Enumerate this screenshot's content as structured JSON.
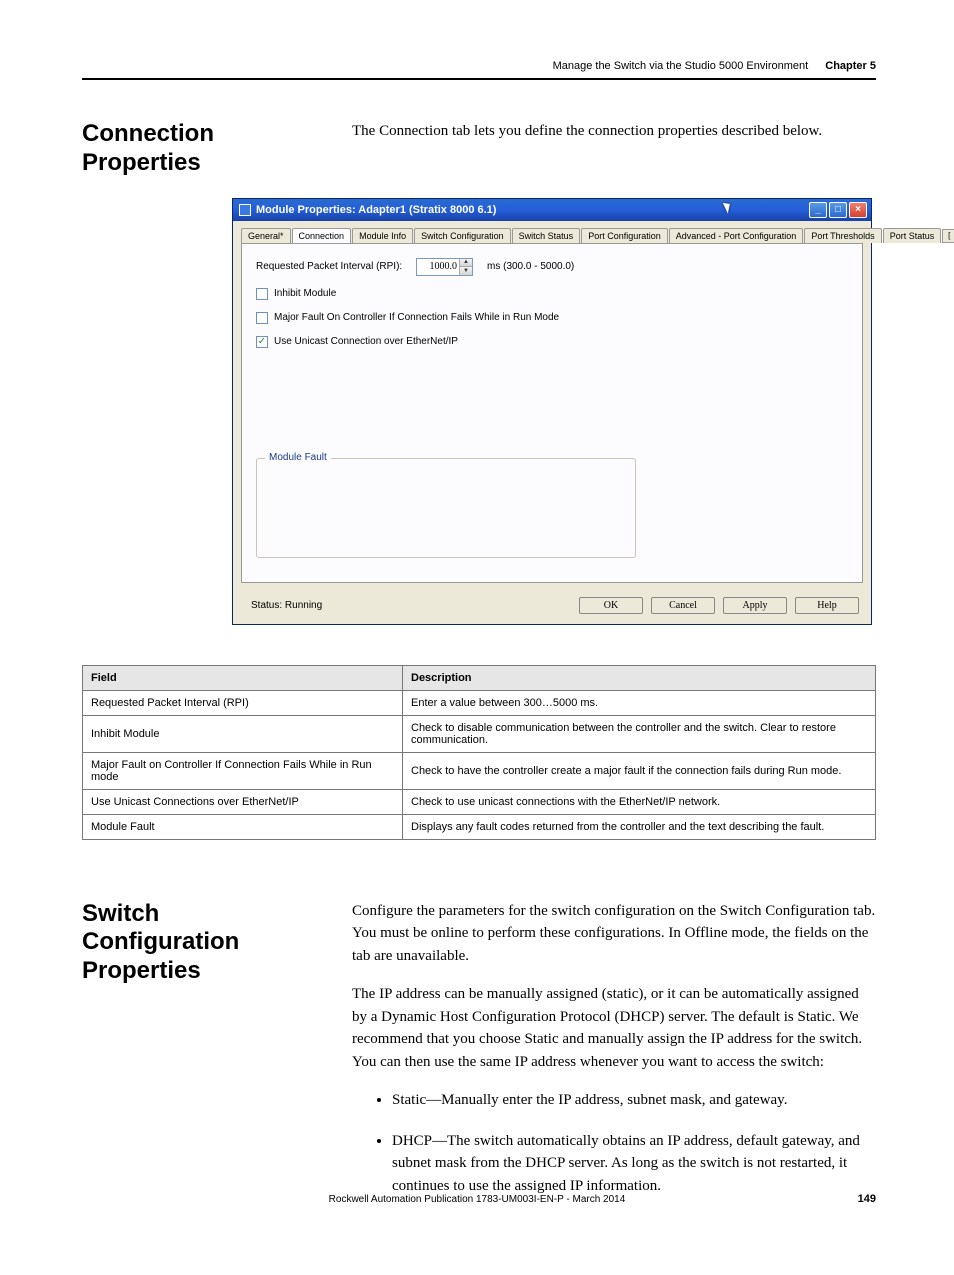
{
  "header": {
    "breadcrumb": "Manage the Switch via the Studio 5000 Environment",
    "chapter": "Chapter 5"
  },
  "section1": {
    "heading": "Connection Properties",
    "intro": "The Connection tab lets you define the connection properties described below."
  },
  "dialog": {
    "title": "Module Properties: Adapter1 (Stratix 8000 6.1)",
    "tabs": {
      "general": "General*",
      "connection": "Connection",
      "module_info": "Module Info",
      "switch_config": "Switch Configuration",
      "switch_status": "Switch Status",
      "port_config": "Port Configuration",
      "adv_port_config": "Advanced - Port Configuration",
      "port_thresholds": "Port Thresholds",
      "port_status": "Port Status"
    },
    "rpi_label": "Requested Packet Interval (RPI):",
    "rpi_value": "1000.0",
    "rpi_range": "ms (300.0 - 5000.0)",
    "inhibit_label": "Inhibit Module",
    "major_fault_label": "Major Fault On Controller If Connection Fails While in Run Mode",
    "unicast_label": "Use Unicast Connection over EtherNet/IP",
    "module_fault_legend": "Module Fault",
    "status_label": "Status: Running",
    "buttons": {
      "ok": "OK",
      "cancel": "Cancel",
      "apply": "Apply",
      "help": "Help"
    }
  },
  "table": {
    "headers": {
      "field": "Field",
      "description": "Description"
    },
    "rows": [
      {
        "field": "Requested Packet Interval (RPI)",
        "desc": "Enter a value between 300…5000 ms."
      },
      {
        "field": "Inhibit Module",
        "desc": "Check to disable communication between the controller and the switch. Clear to restore communication."
      },
      {
        "field": "Major Fault on Controller If Connection Fails While in Run mode",
        "desc": "Check to have the controller create a major fault if the connection fails during Run mode."
      },
      {
        "field": "Use Unicast Connections over EtherNet/IP",
        "desc": "Check to use unicast connections with the EtherNet/IP network."
      },
      {
        "field": "Module Fault",
        "desc": "Displays any fault codes returned from the controller and the text describing the fault."
      }
    ]
  },
  "section2": {
    "heading": "Switch Configuration Properties",
    "p1": "Configure the parameters for the switch configuration on the Switch Configuration tab. You must be online to perform these configurations. In Offline mode, the fields on the tab are unavailable.",
    "p2": "The IP address can be manually assigned (static), or it can be automatically assigned by a Dynamic Host Configuration Protocol (DHCP) server. The default is Static. We recommend that you choose Static and manually assign the IP address for the switch. You can then use the same IP address whenever you want to access the switch:",
    "li1": "Static—Manually enter the IP address, subnet mask, and gateway.",
    "li2": "DHCP—The switch automatically obtains an IP address, default gateway, and subnet mask from the DHCP server. As long as the switch is not restarted, it continues to use the assigned IP information."
  },
  "footer": {
    "pub": "Rockwell Automation Publication 1783-UM003I-EN-P - March 2014",
    "page": "149"
  }
}
